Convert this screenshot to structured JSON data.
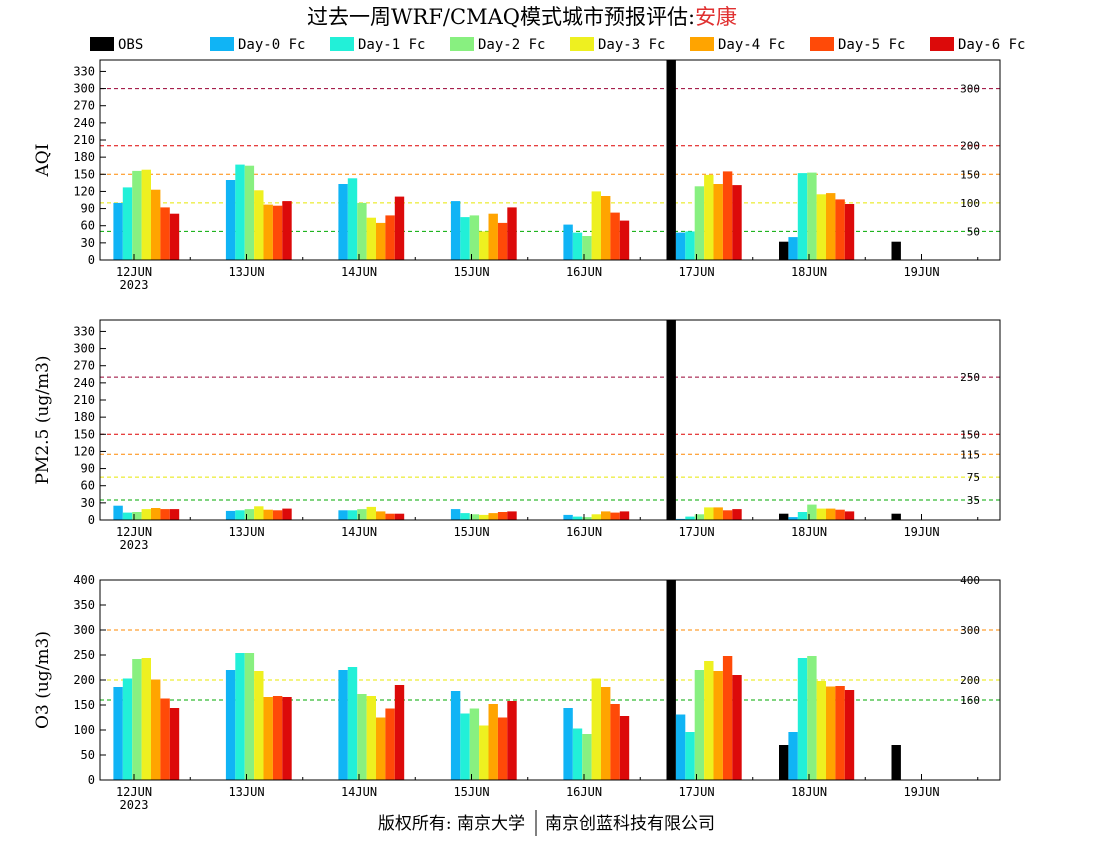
{
  "title": {
    "prefix": "过去一周WRF/CMAQ模式城市预报评估:",
    "city": "安康",
    "city_color": "#e03030"
  },
  "legend": [
    {
      "name": "OBS",
      "color": "#000000"
    },
    {
      "name": "Day-0 Fc",
      "color": "#10b4f5"
    },
    {
      "name": "Day-1 Fc",
      "color": "#22f0d8"
    },
    {
      "name": "Day-2 Fc",
      "color": "#88f080"
    },
    {
      "name": "Day-3 Fc",
      "color": "#eef020"
    },
    {
      "name": "Day-4 Fc",
      "color": "#ffa400"
    },
    {
      "name": "Day-5 Fc",
      "color": "#ff4a08"
    },
    {
      "name": "Day-6 Fc",
      "color": "#dc0a0a"
    }
  ],
  "footer": {
    "left": "版权所有: 南京大学",
    "right": "南京创蓝科技有限公司"
  },
  "chart_data": [
    {
      "type": "bar",
      "ylabel": "AQI",
      "ylim": [
        0,
        350
      ],
      "yticks": [
        0,
        30,
        60,
        90,
        120,
        150,
        180,
        210,
        240,
        270,
        300,
        330
      ],
      "categories": [
        "12JUN",
        "13JUN",
        "14JUN",
        "15JUN",
        "16JUN",
        "17JUN",
        "18JUN",
        "19JUN"
      ],
      "year_label": "2023",
      "thresholds": [
        {
          "value": 50,
          "label": "50",
          "color": "#00aa00"
        },
        {
          "value": 100,
          "label": "100",
          "color": "#e8e800"
        },
        {
          "value": 150,
          "label": "150",
          "color": "#ff8800"
        },
        {
          "value": 200,
          "label": "200",
          "color": "#dd0000"
        },
        {
          "value": 300,
          "label": "300",
          "color": "#990033"
        }
      ],
      "series": [
        {
          "name": "OBS",
          "values": [
            null,
            null,
            null,
            null,
            null,
            350,
            32,
            32
          ]
        },
        {
          "name": "Day-0 Fc",
          "values": [
            100,
            140,
            133,
            103,
            62,
            48,
            40,
            null
          ]
        },
        {
          "name": "Day-1 Fc",
          "values": [
            127,
            167,
            143,
            75,
            48,
            50,
            152,
            null
          ]
        },
        {
          "name": "Day-2 Fc",
          "values": [
            156,
            165,
            100,
            78,
            42,
            129,
            153,
            null
          ]
        },
        {
          "name": "Day-3 Fc",
          "values": [
            158,
            122,
            74,
            50,
            120,
            149,
            115,
            null
          ]
        },
        {
          "name": "Day-4 Fc",
          "values": [
            123,
            97,
            65,
            81,
            112,
            133,
            117,
            null
          ]
        },
        {
          "name": "Day-5 Fc",
          "values": [
            92,
            95,
            78,
            65,
            83,
            155,
            106,
            null
          ]
        },
        {
          "name": "Day-6 Fc",
          "values": [
            81,
            103,
            111,
            92,
            69,
            131,
            98,
            null
          ]
        }
      ]
    },
    {
      "type": "bar",
      "ylabel": "PM2.5 (ug/m3)",
      "ylim": [
        0,
        350
      ],
      "yticks": [
        0,
        30,
        60,
        90,
        120,
        150,
        180,
        210,
        240,
        270,
        300,
        330
      ],
      "categories": [
        "12JUN",
        "13JUN",
        "14JUN",
        "15JUN",
        "16JUN",
        "17JUN",
        "18JUN",
        "19JUN"
      ],
      "year_label": "2023",
      "thresholds": [
        {
          "value": 35,
          "label": "35",
          "color": "#00aa00"
        },
        {
          "value": 75,
          "label": "75",
          "color": "#e8e800"
        },
        {
          "value": 115,
          "label": "115",
          "color": "#ff8800"
        },
        {
          "value": 150,
          "label": "150",
          "color": "#dd0000"
        },
        {
          "value": 250,
          "label": "250",
          "color": "#990033"
        }
      ],
      "series": [
        {
          "name": "OBS",
          "values": [
            null,
            null,
            null,
            null,
            null,
            350,
            11,
            11
          ]
        },
        {
          "name": "Day-0 Fc",
          "values": [
            25,
            16,
            17,
            19,
            9,
            2,
            5,
            null
          ]
        },
        {
          "name": "Day-1 Fc",
          "values": [
            13,
            17,
            17,
            12,
            6,
            6,
            14,
            null
          ]
        },
        {
          "name": "Day-2 Fc",
          "values": [
            14,
            19,
            19,
            10,
            5,
            10,
            27,
            null
          ]
        },
        {
          "name": "Day-3 Fc",
          "values": [
            19,
            24,
            23,
            9,
            10,
            22,
            20,
            null
          ]
        },
        {
          "name": "Day-4 Fc",
          "values": [
            21,
            18,
            15,
            12,
            15,
            22,
            20,
            null
          ]
        },
        {
          "name": "Day-5 Fc",
          "values": [
            19,
            17,
            11,
            14,
            13,
            17,
            18,
            null
          ]
        },
        {
          "name": "Day-6 Fc",
          "values": [
            19,
            20,
            11,
            15,
            15,
            19,
            15,
            null
          ]
        }
      ]
    },
    {
      "type": "bar",
      "ylabel": "O3 (ug/m3)",
      "ylim": [
        0,
        400
      ],
      "yticks": [
        0,
        50,
        100,
        150,
        200,
        250,
        300,
        350,
        400
      ],
      "categories": [
        "12JUN",
        "13JUN",
        "14JUN",
        "15JUN",
        "16JUN",
        "17JUN",
        "18JUN",
        "19JUN"
      ],
      "year_label": "2023",
      "thresholds": [
        {
          "value": 160,
          "label": "160",
          "color": "#00aa00"
        },
        {
          "value": 200,
          "label": "200",
          "color": "#e8e800"
        },
        {
          "value": 300,
          "label": "300",
          "color": "#ff8800"
        },
        {
          "value": 400,
          "label": "400",
          "color": "#dd0000"
        }
      ],
      "series": [
        {
          "name": "OBS",
          "values": [
            null,
            null,
            null,
            null,
            null,
            400,
            70,
            70
          ]
        },
        {
          "name": "Day-0 Fc",
          "values": [
            186,
            220,
            220,
            178,
            144,
            131,
            96,
            null
          ]
        },
        {
          "name": "Day-1 Fc",
          "values": [
            203,
            254,
            226,
            133,
            103,
            96,
            244,
            null
          ]
        },
        {
          "name": "Day-2 Fc",
          "values": [
            242,
            254,
            172,
            143,
            92,
            220,
            248,
            null
          ]
        },
        {
          "name": "Day-3 Fc",
          "values": [
            244,
            218,
            168,
            109,
            203,
            238,
            198,
            null
          ]
        },
        {
          "name": "Day-4 Fc",
          "values": [
            201,
            166,
            125,
            152,
            186,
            218,
            187,
            null
          ]
        },
        {
          "name": "Day-5 Fc",
          "values": [
            163,
            168,
            143,
            125,
            152,
            248,
            188,
            null
          ]
        },
        {
          "name": "Day-6 Fc",
          "values": [
            144,
            166,
            190,
            158,
            128,
            210,
            180,
            null
          ]
        }
      ]
    }
  ]
}
